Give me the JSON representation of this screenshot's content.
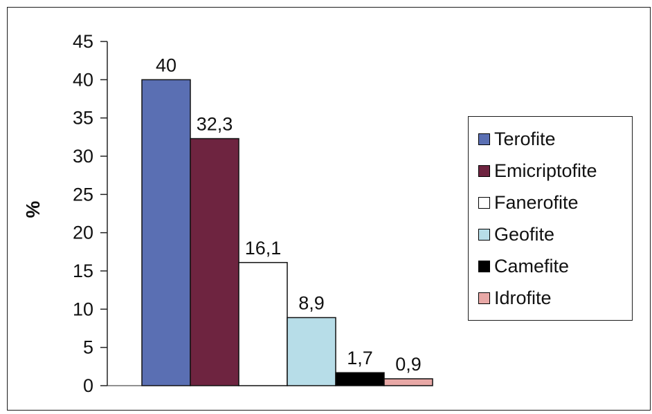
{
  "chart_data": {
    "type": "bar",
    "categories": [
      "Terofite",
      "Emicriptofite",
      "Fanerofite",
      "Geofite",
      "Camefite",
      "Idrofite"
    ],
    "values": [
      40,
      32.3,
      16.1,
      8.9,
      1.7,
      0.9
    ],
    "value_labels": [
      "40",
      "32,3",
      "16,1",
      "8,9",
      "1,7",
      "0,9"
    ],
    "colors": [
      "#5a6fb3",
      "#6e2440",
      "#ffffff",
      "#b7dde8",
      "#000000",
      "#e8a8a6"
    ],
    "ylabel": "%",
    "xlabel": "",
    "ylim": [
      0,
      45
    ],
    "yticks": [
      "0",
      "5",
      "10",
      "15",
      "20",
      "25",
      "30",
      "35",
      "40",
      "45"
    ],
    "grid": false,
    "legend_position": "right"
  }
}
